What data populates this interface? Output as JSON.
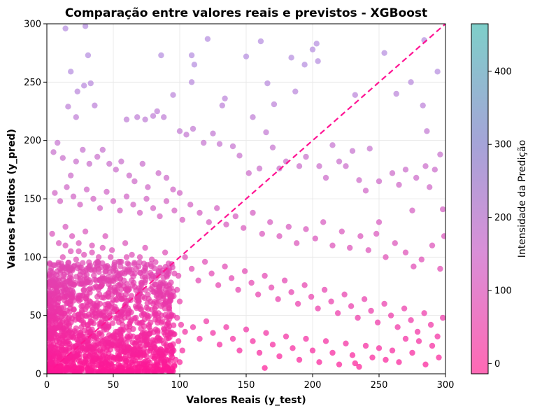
{
  "chart_data": {
    "type": "scatter",
    "title": "Comparação entre valores reais e previstos - XGBoost",
    "xlabel": "Valores Reais (y_test)",
    "ylabel": "Valores Preditos (y_pred)",
    "xlim": [
      0,
      300
    ],
    "ylim": [
      0,
      300
    ],
    "x_ticks": [
      0,
      50,
      100,
      150,
      200,
      250,
      300
    ],
    "y_ticks": [
      0,
      50,
      100,
      150,
      200,
      250,
      300
    ],
    "grid": true,
    "reference_line": {
      "from": [
        0,
        0
      ],
      "to": [
        300,
        300
      ],
      "style": "dashed",
      "color": "#ff1493"
    },
    "colorbar": {
      "label": "Intensidade da Predição",
      "min": -14,
      "max": 465,
      "ticks": [
        0,
        100,
        200,
        300,
        400
      ],
      "colors": [
        "#ff69b4",
        "#a6a3d8",
        "#7ecfc9"
      ]
    },
    "point_color_low": "#ff1493",
    "point_color_high": "#b48ade",
    "points": [
      [
        14,
        296
      ],
      [
        29,
        298
      ],
      [
        31,
        273
      ],
      [
        28,
        247
      ],
      [
        33,
        249
      ],
      [
        18,
        259
      ],
      [
        23,
        242
      ],
      [
        16,
        229
      ],
      [
        22,
        220
      ],
      [
        36,
        230
      ],
      [
        86,
        273
      ],
      [
        109,
        273
      ],
      [
        111,
        265
      ],
      [
        109,
        250
      ],
      [
        95,
        239
      ],
      [
        121,
        287
      ],
      [
        134,
        236
      ],
      [
        132,
        230
      ],
      [
        150,
        272
      ],
      [
        155,
        220
      ],
      [
        161,
        285
      ],
      [
        166,
        249
      ],
      [
        171,
        231
      ],
      [
        184,
        271
      ],
      [
        187,
        242
      ],
      [
        194,
        265
      ],
      [
        200,
        278
      ],
      [
        203,
        283
      ],
      [
        204,
        268
      ],
      [
        254,
        275
      ],
      [
        263,
        240
      ],
      [
        274,
        250
      ],
      [
        284,
        286
      ],
      [
        286,
        208
      ],
      [
        294,
        259
      ],
      [
        283,
        230
      ],
      [
        232,
        239
      ],
      [
        205,
        178
      ],
      [
        230,
        191
      ],
      [
        243,
        193
      ],
      [
        60,
        218
      ],
      [
        68,
        220
      ],
      [
        74,
        218
      ],
      [
        80,
        221
      ],
      [
        83,
        225
      ],
      [
        88,
        220
      ],
      [
        100,
        208
      ],
      [
        105,
        205
      ],
      [
        110,
        210
      ],
      [
        118,
        198
      ],
      [
        125,
        206
      ],
      [
        130,
        197
      ],
      [
        140,
        195
      ],
      [
        145,
        187
      ],
      [
        152,
        172
      ],
      [
        160,
        176
      ],
      [
        165,
        207
      ],
      [
        170,
        194
      ],
      [
        175,
        176
      ],
      [
        180,
        182
      ],
      [
        190,
        178
      ],
      [
        195,
        186
      ],
      [
        210,
        168
      ],
      [
        215,
        196
      ],
      [
        220,
        182
      ],
      [
        225,
        178
      ],
      [
        235,
        166
      ],
      [
        240,
        157
      ],
      [
        250,
        165
      ],
      [
        260,
        172
      ],
      [
        265,
        162
      ],
      [
        270,
        175
      ],
      [
        278,
        168
      ],
      [
        285,
        178
      ],
      [
        292,
        175
      ],
      [
        296,
        188
      ],
      [
        298,
        141
      ],
      [
        275,
        140
      ],
      [
        288,
        160
      ],
      [
        250,
        130
      ],
      [
        5,
        190
      ],
      [
        8,
        198
      ],
      [
        12,
        185
      ],
      [
        18,
        170
      ],
      [
        22,
        182
      ],
      [
        27,
        192
      ],
      [
        32,
        180
      ],
      [
        38,
        186
      ],
      [
        42,
        192
      ],
      [
        47,
        180
      ],
      [
        52,
        175
      ],
      [
        56,
        182
      ],
      [
        62,
        170
      ],
      [
        66,
        165
      ],
      [
        72,
        180
      ],
      [
        76,
        160
      ],
      [
        84,
        172
      ],
      [
        90,
        168
      ],
      [
        95,
        158
      ],
      [
        100,
        155
      ],
      [
        6,
        155
      ],
      [
        10,
        148
      ],
      [
        15,
        160
      ],
      [
        20,
        152
      ],
      [
        25,
        145
      ],
      [
        30,
        158
      ],
      [
        35,
        150
      ],
      [
        40,
        142
      ],
      [
        45,
        156
      ],
      [
        50,
        148
      ],
      [
        55,
        140
      ],
      [
        60,
        152
      ],
      [
        65,
        145
      ],
      [
        70,
        138
      ],
      [
        75,
        150
      ],
      [
        80,
        142
      ],
      [
        85,
        135
      ],
      [
        90,
        148
      ],
      [
        96,
        140
      ],
      [
        102,
        132
      ],
      [
        108,
        145
      ],
      [
        115,
        138
      ],
      [
        122,
        130
      ],
      [
        128,
        142
      ],
      [
        135,
        128
      ],
      [
        142,
        135
      ],
      [
        148,
        125
      ],
      [
        155,
        138
      ],
      [
        162,
        120
      ],
      [
        168,
        130
      ],
      [
        175,
        118
      ],
      [
        182,
        126
      ],
      [
        188,
        112
      ],
      [
        195,
        124
      ],
      [
        202,
        116
      ],
      [
        208,
        130
      ],
      [
        215,
        110
      ],
      [
        222,
        122
      ],
      [
        228,
        108
      ],
      [
        236,
        118
      ],
      [
        242,
        106
      ],
      [
        248,
        120
      ],
      [
        255,
        100
      ],
      [
        262,
        112
      ],
      [
        270,
        104
      ],
      [
        276,
        92
      ],
      [
        282,
        98
      ],
      [
        290,
        110
      ],
      [
        296,
        90
      ],
      [
        299,
        118
      ],
      [
        4,
        120
      ],
      [
        9,
        112
      ],
      [
        14,
        126
      ],
      [
        19,
        118
      ],
      [
        24,
        105
      ],
      [
        29,
        122
      ],
      [
        34,
        110
      ],
      [
        39,
        100
      ],
      [
        44,
        118
      ],
      [
        49,
        106
      ],
      [
        54,
        96
      ],
      [
        59,
        112
      ],
      [
        64,
        102
      ],
      [
        69,
        92
      ],
      [
        74,
        108
      ],
      [
        79,
        98
      ],
      [
        84,
        88
      ],
      [
        89,
        104
      ],
      [
        94,
        94
      ],
      [
        99,
        84
      ],
      [
        104,
        100
      ],
      [
        109,
        90
      ],
      [
        114,
        80
      ],
      [
        119,
        96
      ],
      [
        124,
        86
      ],
      [
        129,
        76
      ],
      [
        134,
        92
      ],
      [
        139,
        82
      ],
      [
        144,
        72
      ],
      [
        149,
        88
      ],
      [
        154,
        78
      ],
      [
        159,
        68
      ],
      [
        164,
        84
      ],
      [
        169,
        74
      ],
      [
        174,
        64
      ],
      [
        179,
        80
      ],
      [
        184,
        70
      ],
      [
        189,
        60
      ],
      [
        194,
        76
      ],
      [
        199,
        66
      ],
      [
        204,
        56
      ],
      [
        209,
        72
      ],
      [
        214,
        62
      ],
      [
        219,
        52
      ],
      [
        224,
        68
      ],
      [
        229,
        58
      ],
      [
        234,
        48
      ],
      [
        239,
        64
      ],
      [
        244,
        54
      ],
      [
        249,
        44
      ],
      [
        254,
        60
      ],
      [
        259,
        50
      ],
      [
        264,
        40
      ],
      [
        269,
        56
      ],
      [
        274,
        46
      ],
      [
        279,
        36
      ],
      [
        284,
        52
      ],
      [
        289,
        42
      ],
      [
        294,
        32
      ],
      [
        298,
        48
      ],
      [
        110,
        40
      ],
      [
        115,
        30
      ],
      [
        120,
        45
      ],
      [
        125,
        35
      ],
      [
        130,
        25
      ],
      [
        135,
        40
      ],
      [
        140,
        30
      ],
      [
        145,
        20
      ],
      [
        150,
        38
      ],
      [
        155,
        28
      ],
      [
        160,
        18
      ],
      [
        165,
        35
      ],
      [
        170,
        25
      ],
      [
        175,
        15
      ],
      [
        180,
        32
      ],
      [
        185,
        22
      ],
      [
        190,
        12
      ],
      [
        195,
        30
      ],
      [
        200,
        20
      ],
      [
        205,
        10
      ],
      [
        210,
        28
      ],
      [
        215,
        18
      ],
      [
        220,
        8
      ],
      [
        225,
        26
      ],
      [
        230,
        16
      ],
      [
        235,
        6
      ],
      [
        240,
        24
      ],
      [
        245,
        14
      ],
      [
        250,
        22
      ],
      [
        255,
        12
      ],
      [
        260,
        20
      ],
      [
        265,
        10
      ],
      [
        270,
        30
      ],
      [
        275,
        18
      ],
      [
        280,
        28
      ],
      [
        285,
        8
      ],
      [
        290,
        24
      ],
      [
        295,
        14
      ],
      [
        164,
        5
      ],
      [
        232,
        9
      ],
      [
        3,
        10
      ],
      [
        5,
        25
      ],
      [
        7,
        40
      ],
      [
        9,
        55
      ],
      [
        11,
        70
      ],
      [
        13,
        85
      ],
      [
        15,
        5
      ],
      [
        17,
        20
      ],
      [
        19,
        35
      ],
      [
        21,
        50
      ],
      [
        23,
        65
      ],
      [
        25,
        80
      ],
      [
        27,
        95
      ],
      [
        29,
        15
      ],
      [
        31,
        30
      ],
      [
        33,
        45
      ],
      [
        35,
        60
      ],
      [
        37,
        75
      ],
      [
        39,
        90
      ],
      [
        41,
        8
      ],
      [
        43,
        22
      ],
      [
        45,
        38
      ],
      [
        47,
        52
      ],
      [
        49,
        68
      ],
      [
        51,
        82
      ],
      [
        53,
        12
      ],
      [
        55,
        28
      ],
      [
        57,
        42
      ],
      [
        59,
        58
      ],
      [
        61,
        72
      ],
      [
        63,
        18
      ],
      [
        65,
        32
      ],
      [
        67,
        48
      ],
      [
        69,
        62
      ],
      [
        71,
        78
      ],
      [
        73,
        10
      ],
      [
        75,
        25
      ],
      [
        77,
        40
      ],
      [
        79,
        55
      ],
      [
        81,
        70
      ],
      [
        83,
        15
      ],
      [
        85,
        30
      ],
      [
        87,
        45
      ],
      [
        89,
        60
      ],
      [
        91,
        20
      ],
      [
        93,
        35
      ],
      [
        95,
        50
      ],
      [
        97,
        12
      ],
      [
        99,
        28
      ],
      [
        101,
        42
      ],
      [
        6,
        60
      ],
      [
        8,
        75
      ],
      [
        10,
        90
      ],
      [
        12,
        45
      ],
      [
        14,
        30
      ],
      [
        16,
        62
      ],
      [
        18,
        78
      ],
      [
        20,
        92
      ],
      [
        22,
        15
      ],
      [
        24,
        48
      ],
      [
        26,
        58
      ],
      [
        28,
        72
      ],
      [
        30,
        85
      ],
      [
        32,
        20
      ],
      [
        34,
        38
      ],
      [
        36,
        52
      ],
      [
        38,
        66
      ],
      [
        40,
        80
      ],
      [
        42,
        28
      ],
      [
        44,
        44
      ],
      [
        46,
        60
      ],
      [
        48,
        74
      ],
      [
        50,
        12
      ],
      [
        52,
        36
      ],
      [
        54,
        50
      ],
      [
        56,
        64
      ],
      [
        58,
        22
      ],
      [
        60,
        40
      ],
      [
        62,
        54
      ],
      [
        64,
        8
      ],
      [
        66,
        26
      ],
      [
        68,
        44
      ],
      [
        70,
        58
      ],
      [
        72,
        16
      ],
      [
        74,
        34
      ],
      [
        76,
        48
      ],
      [
        78,
        62
      ],
      [
        80,
        24
      ],
      [
        82,
        38
      ],
      [
        84,
        52
      ],
      [
        86,
        10
      ],
      [
        88,
        26
      ],
      [
        90,
        42
      ],
      [
        92,
        56
      ],
      [
        94,
        18
      ],
      [
        96,
        34
      ],
      [
        98,
        48
      ],
      [
        100,
        62
      ],
      [
        102,
        20
      ],
      [
        104,
        36
      ],
      [
        2,
        30
      ],
      [
        4,
        45
      ],
      [
        6,
        15
      ],
      [
        8,
        88
      ],
      [
        10,
        65
      ],
      [
        12,
        100
      ],
      [
        14,
        110
      ],
      [
        16,
        95
      ],
      [
        18,
        105
      ],
      [
        20,
        8
      ],
      [
        22,
        98
      ],
      [
        24,
        112
      ],
      [
        26,
        40
      ],
      [
        28,
        102
      ],
      [
        30,
        66
      ],
      [
        32,
        92
      ],
      [
        34,
        104
      ],
      [
        36,
        16
      ],
      [
        38,
        96
      ],
      [
        40,
        60
      ],
      [
        42,
        108
      ],
      [
        44,
        92
      ],
      [
        46,
        24
      ],
      [
        48,
        100
      ],
      [
        50,
        88
      ],
      [
        52,
        64
      ],
      [
        54,
        8
      ],
      [
        56,
        96
      ],
      [
        58,
        80
      ],
      [
        60,
        100
      ],
      [
        62,
        30
      ],
      [
        64,
        86
      ],
      [
        66,
        94
      ],
      [
        68,
        14
      ],
      [
        70,
        100
      ],
      [
        72,
        44
      ],
      [
        74,
        88
      ],
      [
        76,
        68
      ],
      [
        78,
        94
      ],
      [
        80,
        6
      ],
      [
        82,
        84
      ],
      [
        84,
        74
      ],
      [
        86,
        58
      ],
      [
        88,
        82
      ],
      [
        90,
        30
      ],
      [
        92,
        76
      ],
      [
        94,
        66
      ],
      [
        96,
        86
      ],
      [
        98,
        72
      ],
      [
        100,
        10
      ]
    ]
  }
}
